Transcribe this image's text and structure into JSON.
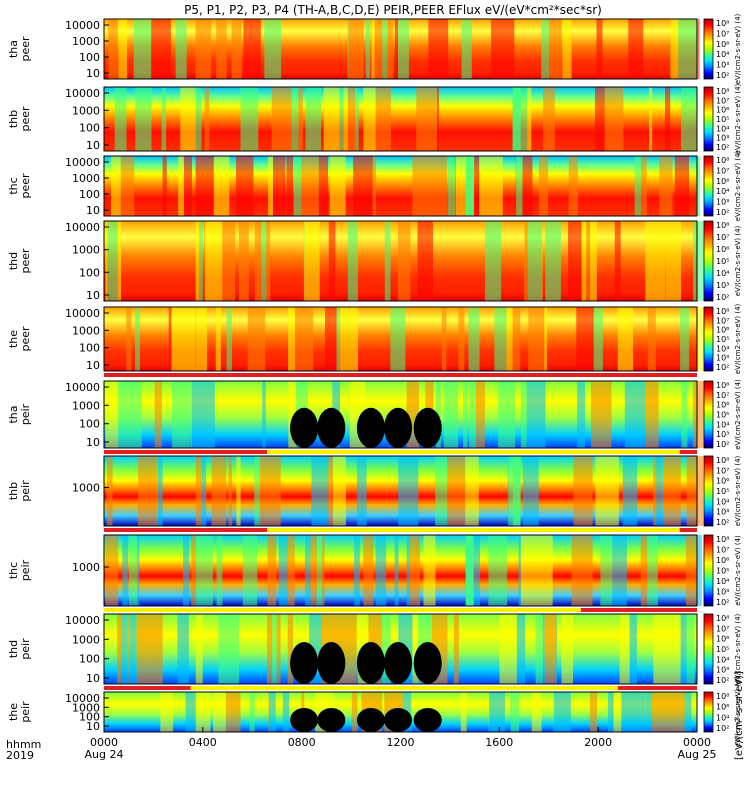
{
  "chart_data": {
    "type": "heatmap",
    "title": "P5, P1, P2, P3, P4 (TH-A,B,C,D,E) PEIR,PEER EFlux eV/(eV*cm²*sec*sr)",
    "colorbar_unit_label": "[eV/(cm²-s-sr-eV)]",
    "colorbar_label_glyphs": "eV/(cm2-s-sr-eV) (4)",
    "colorbar_ticks": [
      "10²",
      "10³",
      "10⁴",
      "10⁵",
      "10⁶",
      "10⁷",
      "10⁸"
    ],
    "xlabel_rows": [
      "hhmm",
      "2019"
    ],
    "x_ticks": [
      "0000",
      "0400",
      "0800",
      "1200",
      "1600",
      "2000",
      "0000"
    ],
    "x_tick_hours": [
      0,
      4,
      8,
      12,
      16,
      20,
      24
    ],
    "x_date_labels": [
      {
        "hour": 0,
        "label": "Aug 24"
      },
      {
        "hour": 24,
        "label": "Aug 25"
      }
    ],
    "xlim_hours": [
      0,
      24
    ],
    "panels": [
      {
        "probe": "tha",
        "product": "peer",
        "yticks": [
          "10000",
          "1000",
          "100",
          "10"
        ],
        "style": "peer",
        "bar": null
      },
      {
        "probe": "thb",
        "product": "peer",
        "yticks": [
          "10000",
          "1000",
          "100",
          "10"
        ],
        "style": "peer_flat",
        "bar": null
      },
      {
        "probe": "thc",
        "product": "peer",
        "yticks": [
          "10000",
          "1000",
          "100",
          "10"
        ],
        "style": "peer_flat",
        "bar": null
      },
      {
        "probe": "thd",
        "product": "peer",
        "yticks": [
          "10000",
          "1000",
          "100",
          "10"
        ],
        "style": "peer",
        "bar": null
      },
      {
        "probe": "the",
        "product": "peer",
        "yticks": [
          "10000",
          "1000",
          "100",
          "10"
        ],
        "style": "peer",
        "bar": [
          {
            "from": 0,
            "to": 17.5,
            "color": "#e02020"
          },
          {
            "from": 17.5,
            "to": 24,
            "color": "#e02020"
          }
        ]
      },
      {
        "probe": "tha",
        "product": "peir",
        "yticks": [
          "10000",
          "1000",
          "100",
          "10"
        ],
        "style": "peir",
        "bar": [
          {
            "from": 0,
            "to": 6.6,
            "color": "#e02020"
          },
          {
            "from": 6.6,
            "to": 23.3,
            "color": "#f8f000"
          },
          {
            "from": 23.3,
            "to": 24,
            "color": "#e02020"
          }
        ]
      },
      {
        "probe": "thb",
        "product": "peir",
        "yticks": [
          "1000"
        ],
        "style": "peir_flat",
        "bar": [
          {
            "from": 0,
            "to": 6.6,
            "color": "#e02020"
          },
          {
            "from": 6.6,
            "to": 23.3,
            "color": "#f8f000"
          },
          {
            "from": 23.3,
            "to": 24,
            "color": "#e02020"
          }
        ]
      },
      {
        "probe": "thc",
        "product": "peir",
        "yticks": [
          "1000"
        ],
        "style": "peir_flat",
        "bar": [
          {
            "from": 0,
            "to": 19.3,
            "color": "#f8f000"
          },
          {
            "from": 19.3,
            "to": 24,
            "color": "#e02020"
          }
        ]
      },
      {
        "probe": "thd",
        "product": "peir",
        "yticks": [
          "10000",
          "1000",
          "100",
          "10"
        ],
        "style": "peir",
        "bar": [
          {
            "from": 0,
            "to": 3.5,
            "color": "#e02020"
          },
          {
            "from": 3.5,
            "to": 20.8,
            "color": "#f8f000"
          },
          {
            "from": 20.8,
            "to": 24,
            "color": "#e02020"
          }
        ]
      },
      {
        "probe": "the",
        "product": "peir",
        "yticks": [
          "10000",
          "1000",
          "100",
          "10"
        ],
        "style": "peir",
        "bar": null
      }
    ]
  }
}
